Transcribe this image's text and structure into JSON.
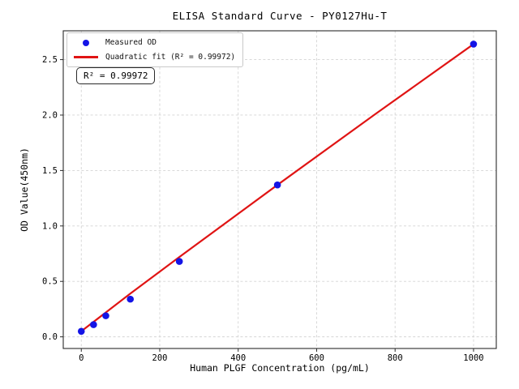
{
  "chart_data": {
    "type": "scatter",
    "title": "ELISA Standard Curve - PY0127Hu-T",
    "xlabel": "Human PLGF Concentration (pg/mL)",
    "ylabel": "OD Value(450nm)",
    "xlim": [
      -46,
      1058
    ],
    "ylim": [
      -0.105,
      2.76
    ],
    "xticks": [
      0,
      200,
      400,
      600,
      800,
      1000
    ],
    "xtick_labels": [
      "0",
      "200",
      "400",
      "600",
      "800",
      "1000"
    ],
    "yticks": [
      0,
      0.5,
      1.0,
      1.5,
      2.0,
      2.5
    ],
    "ytick_labels": [
      "0.0",
      "0.5",
      "1.0",
      "1.5",
      "2.0",
      "2.5"
    ],
    "grid": true,
    "grid_style": "dashed",
    "legend": {
      "position": "upper-left",
      "entries": [
        {
          "label": "Measured OD",
          "marker": "dot",
          "color": "#1414e6"
        },
        {
          "label": "Quadratic fit (R² = 0.99972)",
          "marker": "line",
          "color": "#e01414"
        }
      ]
    },
    "annotation": "R² = 0.99972",
    "r_squared": 0.99972,
    "series": [
      {
        "name": "Measured OD",
        "type": "scatter",
        "color": "#1414e6",
        "x": [
          0,
          31.25,
          62.5,
          125,
          250,
          500,
          1000
        ],
        "y": [
          0.05,
          0.11,
          0.19,
          0.34,
          0.68,
          1.37,
          2.64
        ]
      },
      {
        "name": "Quadratic fit",
        "type": "line",
        "color": "#e01414",
        "x": [
          0,
          125,
          250,
          500,
          750,
          1000
        ],
        "y": [
          0.05,
          0.39,
          0.72,
          1.37,
          2.01,
          2.64
        ]
      }
    ],
    "colors": {
      "marker": "#1414e6",
      "line": "#e01414",
      "grid": "#d4d4d4",
      "spine": "#2a2a2a",
      "background": "#ffffff"
    }
  }
}
